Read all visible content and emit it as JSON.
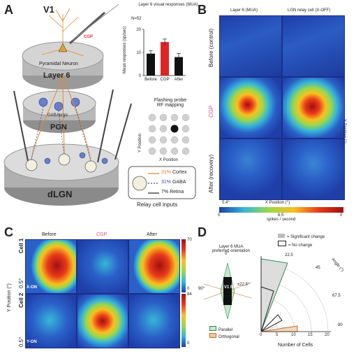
{
  "panel_labels": {
    "a": "A",
    "b": "B",
    "c": "C",
    "d": "D"
  },
  "panelA": {
    "v1": "V1",
    "cgp_pipette": "CGP",
    "pyramidal": "Pyramidal Neuron",
    "layer6": "Layer 6",
    "gaba": "GABAergic",
    "pgn": "PGN",
    "dlgn": "dLGN",
    "flash_title_1": "Flashing probe",
    "flash_title_2": "RF mapping",
    "flash_ylabel": "Y Position",
    "flash_xlabel": "X Position",
    "inputs": [
      {
        "pct": "31%",
        "name": "Cortex",
        "color": "#e07a26"
      },
      {
        "pct": "31%",
        "name": "GABA",
        "color": "#3b4aa0"
      },
      {
        "pct": "7%",
        "name": "Retina",
        "color": "#222222"
      }
    ],
    "relay_caption": "Relay cell inputs"
  },
  "chart_data": {
    "type": "bar",
    "title": "Layer 6 visual responses (MUA)",
    "n_label": "N=52",
    "categories": [
      "Before",
      "CGP",
      "After"
    ],
    "values": [
      9.5,
      14.5,
      8.0
    ],
    "errors": [
      1.2,
      1.3,
      1.6
    ],
    "colors": [
      "#111111",
      "#e02424",
      "#111111"
    ],
    "ylabel": "Mean responses (sp/sec)",
    "ylim": [
      0,
      20
    ],
    "yticks": [
      0,
      10,
      20
    ]
  },
  "panelB": {
    "col_headers": [
      "Layer 6 (MUA)",
      "LGN relay cell (X-OFF)"
    ],
    "row_labels": [
      "Before (control)",
      "CGP",
      "After (recovery)"
    ],
    "y_axis": "Y Position (°)",
    "x_axis": "X Position (°)",
    "scale": "0.4°",
    "cbar_ticks": [
      "0",
      "6.5",
      "0"
    ],
    "cbar_label": "spikes / second"
  },
  "panelC": {
    "col_headers": [
      "Before",
      "CGP",
      "After"
    ],
    "row_labels": [
      "Cell 1",
      "Cell 2"
    ],
    "cell_types": [
      "X-ON",
      "Y-ON"
    ],
    "scales": [
      "0.5°",
      "0.5°"
    ],
    "y_axis": "Y Position (°)",
    "cbar1": [
      "70",
      "0"
    ],
    "cbar2": [
      "84",
      "0"
    ]
  },
  "panelD": {
    "title_1": "Layer 6 MUA",
    "title_2": "preferred orientation",
    "legend": [
      {
        "label": "= Significant change"
      },
      {
        "label": "= No change"
      }
    ],
    "radial_ticks": [
      "0",
      "5",
      "10",
      "15",
      "20"
    ],
    "angle_ticks": [
      "22.5",
      "45",
      "67.5",
      "90"
    ],
    "angle_label": "Angle (°)",
    "xlabel": "Number of Cells",
    "orient_legend": [
      "Parallel",
      "Orthogonal"
    ],
    "deg_labels": [
      "0°",
      "90°",
      "±22.5°"
    ],
    "rf_label": "V1 RF"
  }
}
